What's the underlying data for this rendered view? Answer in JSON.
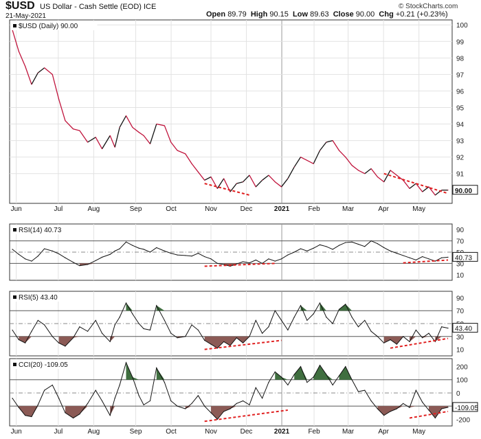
{
  "header": {
    "symbol": "$USD",
    "description": "US Dollar - Cash Settle (EOD) ICE",
    "date": "21-May-2021",
    "open_label": "Open",
    "open": "89.79",
    "high_label": "High",
    "high": "90.15",
    "low_label": "Low",
    "low": "89.63",
    "close_label": "Close",
    "close": "90.00",
    "chg_label": "Chg",
    "chg": "+0.21 (+0.23%)",
    "brand": "© StockCharts.com"
  },
  "colors": {
    "up": "#111111",
    "down": "#c0143c",
    "fill_over": "#3f6e3f",
    "fill_under": "#8b5a55",
    "annotation": "#e02020"
  },
  "chart_data": [
    {
      "type": "line",
      "panel": "price",
      "label": "$USD (Daily) 90.00",
      "last_value": "90.00",
      "ylim": [
        89.2,
        100.3
      ],
      "yticks": [
        91,
        92,
        93,
        94,
        95,
        96,
        97,
        98,
        99,
        100
      ],
      "x_labels": [
        "Jun",
        "Jul",
        "Aug",
        "Sep",
        "Oct",
        "Nov",
        "Dec",
        "2021",
        "Feb",
        "Mar",
        "Apr",
        "May"
      ],
      "x": [
        0,
        4,
        8,
        12,
        16,
        20,
        25,
        29,
        33,
        38,
        42,
        47,
        52,
        56,
        61,
        64,
        67,
        71,
        75,
        79,
        82,
        86,
        90,
        95,
        99,
        103,
        108,
        112,
        116,
        120,
        124,
        128,
        132,
        136,
        140,
        144,
        148,
        152,
        156,
        160,
        164,
        168,
        172,
        176,
        180,
        184,
        188,
        192,
        196,
        200,
        204,
        208,
        212,
        216,
        220,
        224,
        228,
        232,
        236,
        240,
        244,
        248,
        252,
        256,
        260,
        264,
        268,
        272
      ],
      "values": [
        99.7,
        98.4,
        97.5,
        96.4,
        97.1,
        97.4,
        97.0,
        95.5,
        94.2,
        93.7,
        93.6,
        92.9,
        93.2,
        92.5,
        93.3,
        92.6,
        93.8,
        94.5,
        93.8,
        93.5,
        93.3,
        92.8,
        94.0,
        93.9,
        92.9,
        92.4,
        92.2,
        91.6,
        91.1,
        90.6,
        90.8,
        90.1,
        90.7,
        89.9,
        90.4,
        90.5,
        90.9,
        90.2,
        90.6,
        90.9,
        90.5,
        90.2,
        90.7,
        91.4,
        92.0,
        91.8,
        91.6,
        92.4,
        92.9,
        93.0,
        92.4,
        92.0,
        91.5,
        91.2,
        91.0,
        91.3,
        90.8,
        90.5,
        91.2,
        90.9,
        90.6,
        90.1,
        90.4,
        89.9,
        90.2,
        89.7,
        90.0,
        90.0
      ]
    },
    {
      "type": "line",
      "panel": "rsi14",
      "label": "RSI(14) 40.73",
      "last_value": "40.73",
      "ylim": [
        0,
        100
      ],
      "yticks": [
        10,
        30,
        50,
        70,
        90
      ],
      "levels": [
        30,
        70
      ],
      "values": [
        55,
        46,
        38,
        34,
        43,
        56,
        52,
        47,
        40,
        32,
        26,
        28,
        35,
        41,
        46,
        52,
        56,
        68,
        62,
        57,
        55,
        50,
        58,
        52,
        48,
        45,
        44,
        43,
        48,
        42,
        38,
        30,
        28,
        25,
        29,
        33,
        31,
        36,
        30,
        38,
        34,
        38,
        45,
        50,
        56,
        52,
        57,
        63,
        60,
        55,
        62,
        67,
        68,
        64,
        60,
        70,
        65,
        58,
        52,
        48,
        44,
        40,
        36,
        42,
        38,
        34,
        40,
        41
      ]
    },
    {
      "type": "line",
      "panel": "rsi5",
      "label": "RSI(5) 43.40",
      "last_value": "43.40",
      "ylim": [
        0,
        100
      ],
      "yticks": [
        10,
        30,
        50,
        70,
        90
      ],
      "levels": [
        30,
        70
      ],
      "values": [
        40,
        25,
        20,
        38,
        55,
        48,
        30,
        20,
        15,
        28,
        45,
        38,
        55,
        35,
        22,
        48,
        60,
        82,
        65,
        50,
        42,
        40,
        78,
        55,
        35,
        28,
        30,
        48,
        40,
        24,
        18,
        12,
        22,
        16,
        28,
        20,
        30,
        55,
        35,
        45,
        70,
        55,
        40,
        60,
        78,
        55,
        65,
        82,
        60,
        50,
        72,
        80,
        60,
        45,
        55,
        38,
        30,
        20,
        25,
        18,
        30,
        22,
        40,
        28,
        35,
        22,
        45,
        43
      ]
    },
    {
      "type": "line",
      "panel": "cci20",
      "label": "CCI(20) -109.05",
      "last_value": "-109.05",
      "ylim": [
        -250,
        260
      ],
      "yticks": [
        -200,
        -100,
        0,
        100,
        200
      ],
      "levels": [
        -100,
        100
      ],
      "values": [
        -40,
        -110,
        -170,
        -180,
        -90,
        20,
        60,
        -40,
        -150,
        -190,
        -160,
        -80,
        20,
        -60,
        -170,
        -40,
        60,
        230,
        120,
        -20,
        -90,
        -60,
        190,
        80,
        -60,
        -100,
        -120,
        -80,
        -20,
        -100,
        -150,
        -200,
        -140,
        -120,
        -80,
        -60,
        -90,
        40,
        -40,
        80,
        160,
        120,
        60,
        140,
        200,
        80,
        120,
        210,
        140,
        60,
        130,
        200,
        100,
        10,
        20,
        -60,
        -120,
        -170,
        -140,
        -120,
        -80,
        -110,
        20,
        -70,
        -130,
        -190,
        -120,
        -109
      ]
    }
  ]
}
